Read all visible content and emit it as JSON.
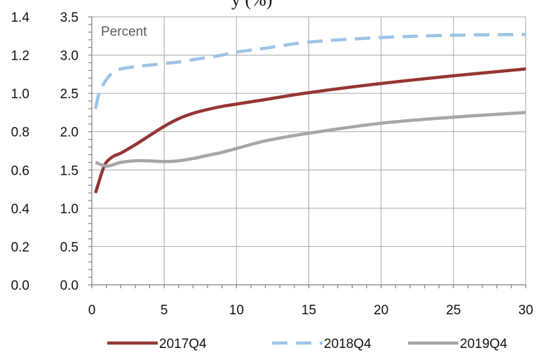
{
  "chart_data": {
    "type": "line",
    "title_fragment": "y       (%)",
    "unit_label": "Percent",
    "x_ticks": [
      "0",
      "5",
      "10",
      "15",
      "20",
      "25",
      "30"
    ],
    "y_ticks_left": [
      "0.0",
      "0.2",
      "0.4",
      "0.6",
      "0.8",
      "1.0",
      "1.2",
      "1.4"
    ],
    "y_ticks_right": [
      "0.0",
      "0.5",
      "1.0",
      "1.5",
      "2.0",
      "2.5",
      "3.0",
      "3.5"
    ],
    "xlim": [
      0,
      30
    ],
    "ylim_left": [
      0,
      1.4
    ],
    "ylim_right": [
      0,
      3.5
    ],
    "grid": true,
    "legend_position": "bottom",
    "series": [
      {
        "name": "2017Q4",
        "color": "#943634",
        "dash": "solid",
        "x": [
          0.25,
          0.5,
          0.75,
          1,
          1.5,
          2,
          3,
          4,
          5,
          6,
          7,
          8,
          9,
          10,
          12,
          15,
          20,
          25,
          30
        ],
        "y": [
          1.2,
          1.35,
          1.5,
          1.6,
          1.68,
          1.72,
          1.83,
          1.95,
          2.07,
          2.17,
          2.24,
          2.29,
          2.33,
          2.36,
          2.42,
          2.51,
          2.63,
          2.73,
          2.82
        ]
      },
      {
        "name": "2018Q4",
        "color": "#9dc3e6",
        "dash": "dashed",
        "x": [
          0.25,
          0.5,
          0.75,
          1,
          1.5,
          2,
          3,
          4,
          5,
          6,
          7,
          8,
          9,
          10,
          12,
          15,
          20,
          25,
          30
        ],
        "y": [
          2.3,
          2.5,
          2.6,
          2.68,
          2.78,
          2.82,
          2.85,
          2.87,
          2.89,
          2.91,
          2.94,
          2.97,
          3.0,
          3.04,
          3.09,
          3.17,
          3.23,
          3.26,
          3.27
        ]
      },
      {
        "name": "2019Q4",
        "color": "#a6a6a6",
        "dash": "solid",
        "x": [
          0.25,
          0.5,
          1,
          1.5,
          2,
          3,
          4,
          5,
          6,
          7,
          8,
          9,
          10,
          12,
          15,
          20,
          25,
          30
        ],
        "y": [
          1.6,
          1.58,
          1.55,
          1.57,
          1.6,
          1.62,
          1.62,
          1.61,
          1.62,
          1.65,
          1.69,
          1.73,
          1.78,
          1.88,
          1.98,
          2.11,
          2.19,
          2.25
        ]
      }
    ]
  }
}
